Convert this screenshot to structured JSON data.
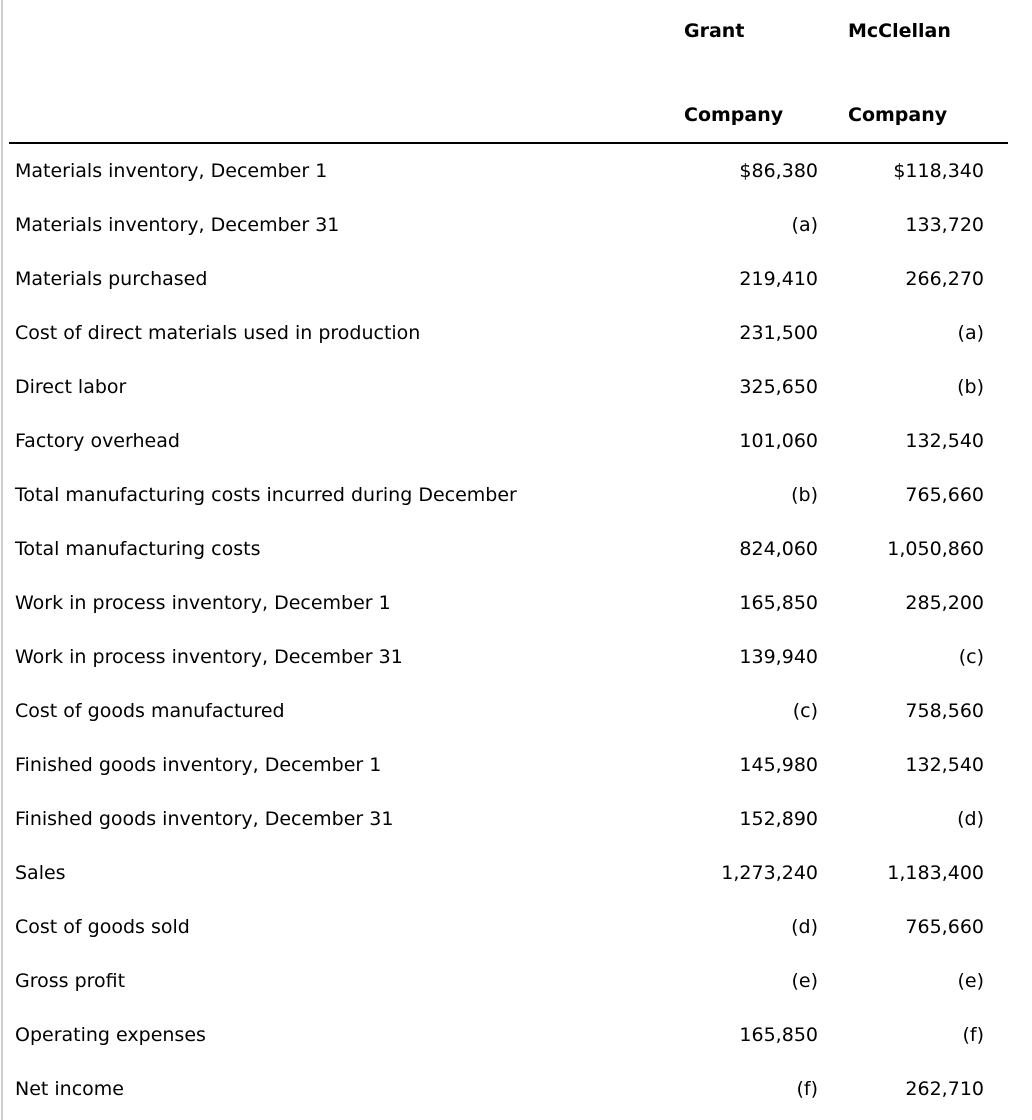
{
  "header": {
    "col1_line1": "Grant",
    "col1_line2": "Company",
    "col2_line1": "McClellan",
    "col2_line2": "Company"
  },
  "rows": [
    {
      "label": "Materials inventory, December 1",
      "grant": "$86,380",
      "mcclellan": "$118,340"
    },
    {
      "label": "Materials inventory, December 31",
      "grant": "(a)",
      "mcclellan": "133,720"
    },
    {
      "label": "Materials purchased",
      "grant": "219,410",
      "mcclellan": "266,270"
    },
    {
      "label": "Cost of direct materials used in production",
      "grant": "231,500",
      "mcclellan": "(a)"
    },
    {
      "label": "Direct labor",
      "grant": "325,650",
      "mcclellan": "(b)"
    },
    {
      "label": "Factory overhead",
      "grant": "101,060",
      "mcclellan": "132,540"
    },
    {
      "label": "Total manufacturing costs incurred during December",
      "grant": "(b)",
      "mcclellan": "765,660"
    },
    {
      "label": "Total manufacturing costs",
      "grant": "824,060",
      "mcclellan": "1,050,860"
    },
    {
      "label": "Work in process inventory, December 1",
      "grant": "165,850",
      "mcclellan": "285,200"
    },
    {
      "label": "Work in process inventory, December 31",
      "grant": "139,940",
      "mcclellan": "(c)"
    },
    {
      "label": "Cost of goods manufactured",
      "grant": "(c)",
      "mcclellan": "758,560"
    },
    {
      "label": "Finished goods inventory, December 1",
      "grant": "145,980",
      "mcclellan": "132,540"
    },
    {
      "label": "Finished goods inventory, December 31",
      "grant": "152,890",
      "mcclellan": "(d)"
    },
    {
      "label": "Sales",
      "grant": "1,273,240",
      "mcclellan": "1,183,400"
    },
    {
      "label": "Cost of goods sold",
      "grant": "(d)",
      "mcclellan": "765,660"
    },
    {
      "label": "Gross profit",
      "grant": "(e)",
      "mcclellan": "(e)"
    },
    {
      "label": "Operating expenses",
      "grant": "165,850",
      "mcclellan": "(f)"
    },
    {
      "label": "Net income",
      "grant": "(f)",
      "mcclellan": "262,710"
    }
  ]
}
